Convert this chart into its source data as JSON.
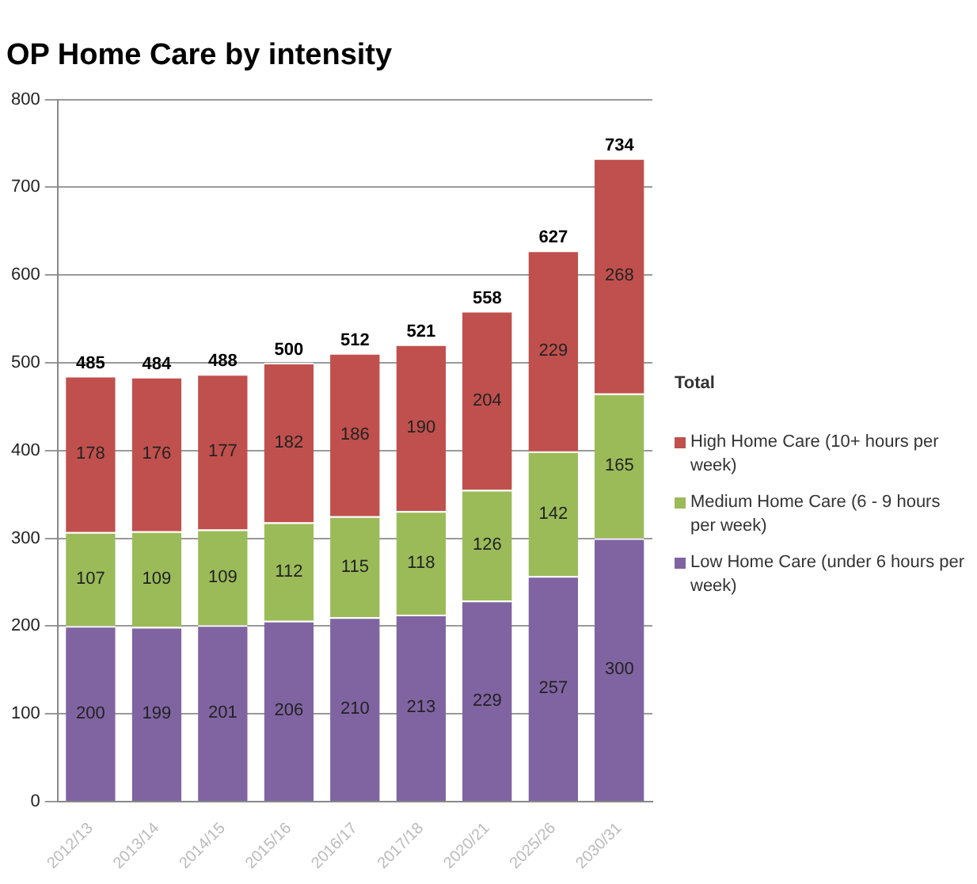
{
  "chart_data": {
    "type": "bar",
    "title": "OP Home Care by intensity",
    "stacked": true,
    "categories": [
      "2012/13",
      "2013/14",
      "2014/15",
      "2015/16",
      "2016/17",
      "2017/18",
      "2020/21",
      "2025/26",
      "2030/31"
    ],
    "series": [
      {
        "name": "Low Home Care (under 6 hours per week)",
        "color": "#8064a2",
        "values": [
          200,
          199,
          201,
          206,
          210,
          213,
          229,
          257,
          300
        ]
      },
      {
        "name": "Medium Home Care (6 - 9 hours per week)",
        "color": "#9bbb59",
        "values": [
          107,
          109,
          109,
          112,
          115,
          118,
          126,
          142,
          165
        ]
      },
      {
        "name": "High Home Care (10+ hours per week)",
        "color": "#c0504d",
        "values": [
          178,
          176,
          177,
          182,
          186,
          190,
          204,
          229,
          268
        ]
      }
    ],
    "totals": [
      "485",
      "484",
      "488",
      "500",
      "512",
      "521",
      "558",
      "627",
      "734"
    ],
    "data_labels": true,
    "ylim": [
      0,
      800
    ],
    "yticks": [
      0,
      100,
      200,
      300,
      400,
      500,
      600,
      700,
      800
    ],
    "grid": "y",
    "legend": "right",
    "legend_title": "Total"
  }
}
